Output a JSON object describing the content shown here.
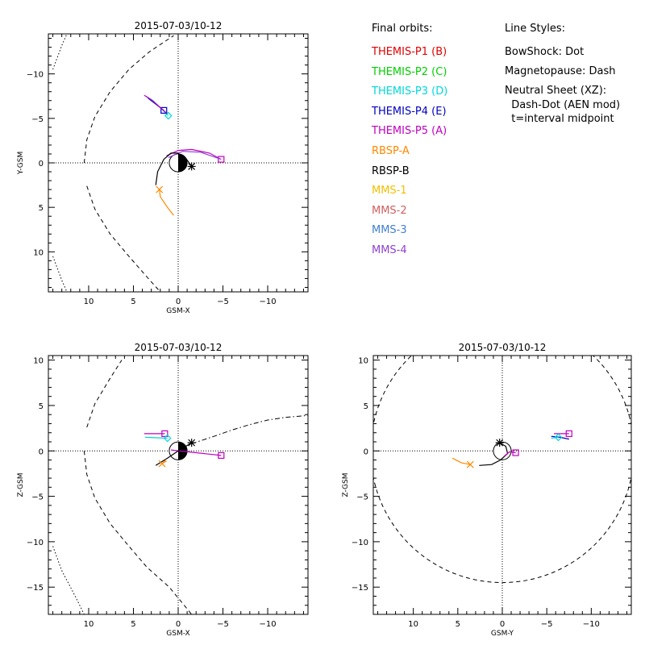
{
  "legend": {
    "orbits_heading": "Final orbits:",
    "styles_heading": "Line Styles:",
    "items": [
      {
        "label": "THEMIS-P1 (B)",
        "color": "#e00000"
      },
      {
        "label": "THEMIS-P2 (C)",
        "color": "#00d000"
      },
      {
        "label": "THEMIS-P3 (D)",
        "color": "#00d8d8"
      },
      {
        "label": "THEMIS-P4 (E)",
        "color": "#0000c0"
      },
      {
        "label": "THEMIS-P5 (A)",
        "color": "#c000c0"
      },
      {
        "label": "RBSP-A",
        "color": "#ff8800"
      },
      {
        "label": "RBSP-B",
        "color": "#000000"
      },
      {
        "label": "MMS-1",
        "color": "#f0c000"
      },
      {
        "label": "MMS-2",
        "color": "#d06060"
      },
      {
        "label": "MMS-3",
        "color": "#4080d0"
      },
      {
        "label": "MMS-4",
        "color": "#9040d0"
      }
    ],
    "style_lines": [
      "BowShock: Dot",
      "Magnetopause: Dash",
      "Neutral Sheet (XZ):",
      "  Dash-Dot (AEN mod)",
      "  t=interval midpoint"
    ]
  },
  "chart_data": [
    {
      "type": "line",
      "title": "2015-07-03/10-12",
      "xlabel": "GSM-X",
      "ylabel": "Y-GSM",
      "xlim": [
        14.5,
        -14.5
      ],
      "ylim": [
        14.5,
        -14.5
      ],
      "xticks": [
        10,
        5,
        0,
        -5,
        -10
      ],
      "yticks": [
        -10,
        -5,
        0,
        5,
        10
      ],
      "boundaries": {
        "bowshock": [
          [
            14,
            -10.5
          ],
          [
            13,
            -13.2
          ],
          [
            12,
            -15.5
          ]
        ],
        "magnetopause": [
          [
            10.5,
            0
          ],
          [
            10.2,
            -2.6
          ],
          [
            9.3,
            -5.2
          ],
          [
            7.6,
            -8
          ],
          [
            5.5,
            -10.5
          ],
          [
            3.2,
            -12.5
          ],
          [
            0.5,
            -14.3
          ]
        ],
        "magnetopause_lower": [
          [
            10.2,
            2.6
          ],
          [
            9.3,
            5.2
          ],
          [
            7.6,
            8
          ],
          [
            5.5,
            10.5
          ],
          [
            3.6,
            12.7
          ],
          [
            2,
            14.5
          ]
        ],
        "bowshock_lower": [
          [
            14,
            10.5
          ],
          [
            13,
            13.2
          ],
          [
            12,
            15.5
          ]
        ]
      },
      "series": [
        {
          "name": "THEMIS-P3 (D)",
          "color": "#00d8d8",
          "points": [
            [
              3.6,
              -7.5
            ],
            [
              2.8,
              -7.0
            ],
            [
              2.0,
              -6.2
            ],
            [
              1.1,
              -5.3
            ]
          ],
          "marker": "diamond"
        },
        {
          "name": "THEMIS-P4 (E)",
          "color": "#0000c0",
          "points": [
            [
              3.4,
              -7.3
            ],
            [
              2.5,
              -6.6
            ],
            [
              1.6,
              -5.9
            ]
          ],
          "marker": "square"
        },
        {
          "name": "THEMIS-P5 (A)",
          "color": "#c000c0",
          "points": [
            [
              3.8,
              -7.6
            ],
            [
              3.0,
              -7.1
            ],
            [
              2.2,
              -6.4
            ],
            [
              1.3,
              -5.6
            ]
          ],
          "marker": "none"
        },
        {
          "name": "THEMIS-P5 (A)",
          "color": "#c000c0",
          "points": [
            [
              1.3,
              -0.8
            ],
            [
              0,
              -1.4
            ],
            [
              -1.5,
              -1.5
            ],
            [
              -3.5,
              -1.1
            ],
            [
              -4.8,
              -0.4
            ]
          ],
          "marker": "square"
        },
        {
          "name": "MMS-4",
          "color": "#9040d0",
          "points": [
            [
              1.1,
              -0.6
            ],
            [
              -0.5,
              -1.3
            ],
            [
              -2.5,
              -1.2
            ],
            [
              -4.8,
              -0.4
            ]
          ],
          "marker": "none"
        },
        {
          "name": "RBSP-B",
          "color": "#000000",
          "points": [
            [
              2.5,
              2.5
            ],
            [
              2.3,
              1.0
            ],
            [
              1.6,
              -0.4
            ],
            [
              0.8,
              -1.1
            ],
            [
              0.1,
              -1.1
            ],
            [
              -0.8,
              -0.6
            ],
            [
              -1.5,
              0.4
            ]
          ],
          "marker": "asterisk"
        },
        {
          "name": "RBSP-A",
          "color": "#ff8800",
          "points": [
            [
              0.5,
              5.9
            ],
            [
              1.2,
              5.0
            ],
            [
              2.0,
              3.8
            ],
            [
              2.1,
              3.0
            ]
          ],
          "marker": "x"
        }
      ]
    },
    {
      "type": "line",
      "title": "2015-07-03/10-12",
      "xlabel": "GSM-X",
      "ylabel": "Z-GSM",
      "xlim": [
        14.5,
        -14.5
      ],
      "ylim": [
        -18,
        10.5
      ],
      "xticks": [
        10,
        5,
        0,
        -5,
        -10
      ],
      "yticks": [
        10,
        5,
        0,
        -5,
        -10,
        -15
      ],
      "boundaries": {
        "bowshock": [
          [
            14,
            -10.5
          ],
          [
            13,
            -13.2
          ],
          [
            11.5,
            -16
          ],
          [
            10.5,
            -18
          ]
        ],
        "magnetopause": [
          [
            10.5,
            0
          ],
          [
            10.2,
            -2.6
          ],
          [
            9.3,
            -5.2
          ],
          [
            7.6,
            -8
          ],
          [
            5.5,
            -10.5
          ],
          [
            3.5,
            -12.8
          ],
          [
            1,
            -15
          ],
          [
            -1.5,
            -18
          ]
        ],
        "magnetopause_upper": [
          [
            10.2,
            2.6
          ],
          [
            9.3,
            5.2
          ],
          [
            7.6,
            8
          ],
          [
            6.3,
            10
          ]
        ],
        "bowshock_upper": [
          [
            14,
            10.5
          ],
          [
            13.5,
            10.5
          ]
        ],
        "neutral_sheet": [
          [
            -1.5,
            0.8
          ],
          [
            -4,
            1.6
          ],
          [
            -6,
            2.3
          ],
          [
            -8,
            2.9
          ],
          [
            -10,
            3.4
          ],
          [
            -12,
            3.7
          ],
          [
            -14.5,
            3.9
          ]
        ]
      },
      "series": [
        {
          "name": "THEMIS-P5 (A)",
          "color": "#c000c0",
          "points": [
            [
              3.8,
              1.9
            ],
            [
              1.5,
              1.9
            ]
          ],
          "marker": "square"
        },
        {
          "name": "THEMIS-P3 (D)",
          "color": "#00d8d8",
          "points": [
            [
              3.7,
              1.5
            ],
            [
              1.2,
              1.4
            ]
          ],
          "marker": "diamond"
        },
        {
          "name": "THEMIS-P5 (A)",
          "color": "#c000c0",
          "points": [
            [
              0.8,
              0.1
            ],
            [
              -2,
              -0.2
            ],
            [
              -4.8,
              -0.5
            ]
          ],
          "marker": "square"
        },
        {
          "name": "RBSP-B",
          "color": "#000000",
          "points": [
            [
              2.5,
              -1.6
            ],
            [
              1.2,
              -0.8
            ],
            [
              0,
              0
            ],
            [
              -1.5,
              0.9
            ]
          ],
          "marker": "asterisk"
        },
        {
          "name": "RBSP-A",
          "color": "#ff8800",
          "points": [
            [
              1.3,
              -1.1
            ],
            [
              1.8,
              -1.4
            ]
          ],
          "marker": "x"
        }
      ]
    },
    {
      "type": "line",
      "title": "2015-07-03/10-12",
      "xlabel": "GSM-Y",
      "ylabel": "Z-GSM",
      "xlim": [
        14.5,
        -14.5
      ],
      "ylim": [
        -18,
        10.5
      ],
      "xticks": [
        10,
        5,
        0,
        -5,
        -10
      ],
      "yticks": [
        10,
        5,
        0,
        -5,
        -10,
        -15
      ],
      "boundaries": {
        "magnetopause_circle": {
          "cx": 0,
          "cy": 0,
          "r": 14.8
        }
      },
      "series": [
        {
          "name": "RBSP-B",
          "color": "#000000",
          "points": [
            [
              2.6,
              -1.6
            ],
            [
              1.2,
              -1.5
            ],
            [
              0.2,
              -1.0
            ],
            [
              -0.6,
              -0.3
            ],
            [
              -0.4,
              0.5
            ],
            [
              0.3,
              0.9
            ]
          ],
          "marker": "asterisk"
        },
        {
          "name": "RBSP-A",
          "color": "#ff8800",
          "points": [
            [
              5.6,
              -0.8
            ],
            [
              4.6,
              -1.3
            ],
            [
              3.6,
              -1.5
            ]
          ],
          "marker": "x"
        },
        {
          "name": "THEMIS-P5 (A)",
          "color": "#c000c0",
          "points": [
            [
              -0.2,
              -0.6
            ],
            [
              -0.8,
              -0.1
            ],
            [
              -1.5,
              -0.2
            ]
          ],
          "marker": "square"
        },
        {
          "name": "THEMIS-P5 (A)",
          "color": "#c000c0",
          "points": [
            [
              -5.8,
              1.9
            ],
            [
              -7.5,
              1.9
            ]
          ],
          "marker": "square"
        },
        {
          "name": "THEMIS-P4 (E)",
          "color": "#0000c0",
          "points": [
            [
              -5.5,
              1.6
            ],
            [
              -6.5,
              1.5
            ],
            [
              -7.5,
              1.3
            ]
          ],
          "marker": "none"
        },
        {
          "name": "THEMIS-P3 (D)",
          "color": "#00d8d8",
          "points": [
            [
              -5.5,
              1.4
            ],
            [
              -6.3,
              1.5
            ]
          ],
          "marker": "diamond"
        }
      ]
    }
  ]
}
